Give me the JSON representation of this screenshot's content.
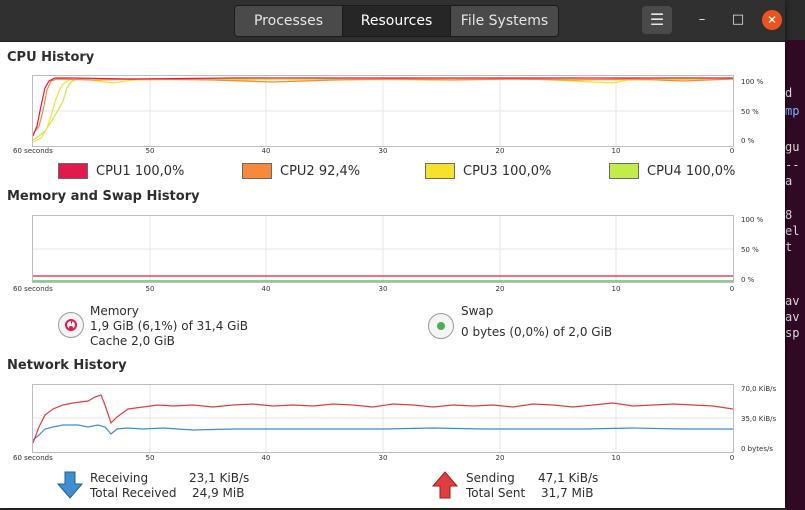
{
  "tabs": [
    {
      "label": "Processes",
      "active": false
    },
    {
      "label": "Resources",
      "active": true
    },
    {
      "label": "File Systems",
      "active": false
    }
  ],
  "window_controls": {
    "menu": "☰",
    "minimize": "–",
    "maximize": "□",
    "close": "✕"
  },
  "x_ticks": [
    "60 seconds",
    "50",
    "40",
    "30",
    "20",
    "10",
    "0"
  ],
  "cpu": {
    "title": "CPU History",
    "y_ticks": [
      "100 %",
      "50 %",
      "0 %"
    ],
    "legend": [
      {
        "label": "CPU1",
        "value": "100,0%",
        "color": "#e01b4c"
      },
      {
        "label": "CPU2",
        "value": "92,4%",
        "color": "#f5893c"
      },
      {
        "label": "CPU3",
        "value": "100,0%",
        "color": "#f6e12e"
      },
      {
        "label": "CPU4",
        "value": "100,0%",
        "color": "#c1ec4b"
      }
    ]
  },
  "memory": {
    "title": "Memory and Swap History",
    "y_ticks": [
      "100 %",
      "50 %",
      "0 %"
    ],
    "mem_label": "Memory",
    "mem_usage": "1,9 GiB (6,1%) of 31,4 GiB",
    "mem_cache": "Cache 2,0 GiB",
    "mem_color": "#e01b4c",
    "swap_label": "Swap",
    "swap_usage": "0 bytes (0,0%) of 2,0 GiB",
    "swap_color": "#4caf50"
  },
  "network": {
    "title": "Network History",
    "y_ticks": [
      "70,0 KiB/s",
      "35,0 KiB/s",
      "0 bytes/s"
    ],
    "receiving_label": "Receiving",
    "receiving_value": "23,1 KiB/s",
    "total_received_label": "Total Received",
    "total_received_value": "24,9 MiB",
    "sending_label": "Sending",
    "sending_value": "47,1 KiB/s",
    "total_sent_label": "Total Sent",
    "total_sent_value": "31,7 MiB",
    "receiving_color": "#3e8ed0",
    "sending_color": "#e23e3e"
  },
  "background_terminal": [
    "d",
    "mp",
    "",
    "gu",
    "--",
    "a",
    "",
    "8",
    "el",
    "t",
    "",
    "",
    "av",
    "av",
    "sp"
  ]
}
